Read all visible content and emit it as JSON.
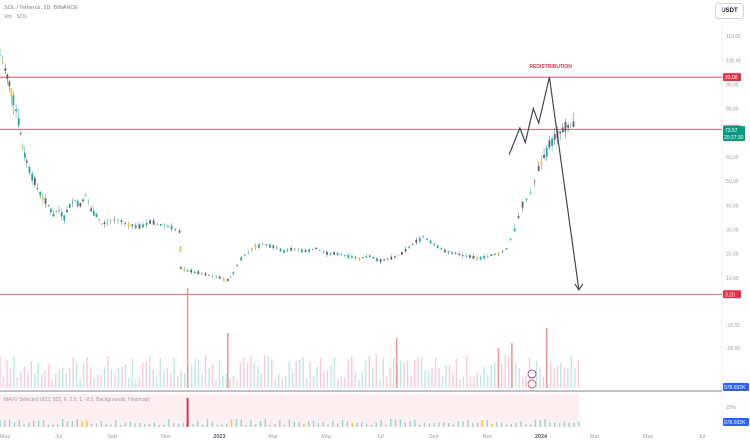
{
  "header": {
    "symbol_line": "SOL / Tetherus, 3D, BINANCE",
    "sub_line": "Vol · SOL",
    "currency": "USDT"
  },
  "chart_data": {
    "type": "candlestick",
    "price_axis": {
      "ticks": [
        110,
        100,
        90,
        80,
        70,
        60,
        50,
        40,
        30,
        20,
        10
      ],
      "tick_labels": [
        "110.00",
        "100.00",
        "90.00",
        "80.00",
        "70.00",
        "60.00",
        "50.00",
        "40.00",
        "30.00",
        "20.00",
        "10.00"
      ],
      "range": [
        0,
        120
      ]
    },
    "volume_axis": {
      "tick_labels": [
        "-10.00",
        "-20.00"
      ],
      "last_label": "978.692K"
    },
    "time_axis": {
      "labels": [
        "May",
        "Jul",
        "Sep",
        "Nov",
        "2023",
        "Mar",
        "May",
        "Jul",
        "Sep",
        "Nov",
        "2024",
        "Mar",
        "May",
        "Jul"
      ],
      "bold": [
        "2023",
        "2024"
      ]
    },
    "horizontal_levels": [
      {
        "value": 93.0,
        "label": "93.08",
        "color": "#e0334a"
      },
      {
        "value": 71.4,
        "label": "71.40",
        "color": "#e0334a"
      },
      {
        "value": 3.2,
        "label": "3.20",
        "color": "#e0334a"
      }
    ],
    "current_price": {
      "value": 73.57,
      "label": "73.57",
      "countdown": "20:27:30",
      "color": "#089981"
    },
    "annotation": {
      "text": "REDISTRIBUTION",
      "color": "#e0334a"
    },
    "projection": {
      "path_points": [
        {
          "month": 19.0,
          "price": 61
        },
        {
          "month": 19.4,
          "price": 72
        },
        {
          "month": 19.6,
          "price": 66
        },
        {
          "month": 19.9,
          "price": 80
        },
        {
          "month": 20.1,
          "price": 74
        },
        {
          "month": 20.5,
          "price": 93
        },
        {
          "month": 21.6,
          "price": 5
        }
      ],
      "color": "#434651"
    },
    "price_series": {
      "x_unit": "months since Apr 2022",
      "points": [
        [
          0,
          102
        ],
        [
          0.2,
          96
        ],
        [
          0.35,
          90
        ],
        [
          0.5,
          84
        ],
        [
          0.7,
          75
        ],
        [
          0.85,
          64
        ],
        [
          1.0,
          58
        ],
        [
          1.2,
          52
        ],
        [
          1.4,
          47
        ],
        [
          1.6,
          43
        ],
        [
          1.8,
          40
        ],
        [
          2.0,
          36
        ],
        [
          2.2,
          38
        ],
        [
          2.4,
          35
        ],
        [
          2.6,
          40
        ],
        [
          2.8,
          42
        ],
        [
          3.0,
          40
        ],
        [
          3.2,
          44
        ],
        [
          3.4,
          38
        ],
        [
          3.6,
          36
        ],
        [
          3.8,
          32
        ],
        [
          4.0,
          33
        ],
        [
          4.4,
          34
        ],
        [
          4.8,
          32
        ],
        [
          5.2,
          31
        ],
        [
          5.6,
          33
        ],
        [
          6.0,
          32
        ],
        [
          6.4,
          31
        ],
        [
          6.7,
          29
        ],
        [
          6.75,
          14
        ],
        [
          7.0,
          13
        ],
        [
          7.4,
          12
        ],
        [
          7.8,
          11
        ],
        [
          8.2,
          10
        ],
        [
          8.5,
          9
        ],
        [
          8.7,
          12
        ],
        [
          9.0,
          18
        ],
        [
          9.4,
          22
        ],
        [
          9.8,
          24
        ],
        [
          10.2,
          23
        ],
        [
          10.6,
          21
        ],
        [
          11.0,
          22
        ],
        [
          11.4,
          21
        ],
        [
          11.8,
          22
        ],
        [
          12.2,
          20
        ],
        [
          12.6,
          20
        ],
        [
          13.0,
          19
        ],
        [
          13.4,
          18
        ],
        [
          13.8,
          19
        ],
        [
          14.2,
          17
        ],
        [
          14.6,
          18
        ],
        [
          15.0,
          20
        ],
        [
          15.4,
          24
        ],
        [
          15.8,
          27
        ],
        [
          16.2,
          24
        ],
        [
          16.6,
          21
        ],
        [
          17.0,
          20
        ],
        [
          17.4,
          19
        ],
        [
          17.8,
          18
        ],
        [
          18.2,
          19
        ],
        [
          18.6,
          20
        ],
        [
          18.9,
          22
        ],
        [
          19.2,
          30
        ],
        [
          19.5,
          40
        ],
        [
          19.8,
          45
        ],
        [
          20.1,
          55
        ],
        [
          20.3,
          60
        ],
        [
          20.5,
          65
        ],
        [
          20.7,
          68
        ],
        [
          20.9,
          70
        ],
        [
          21.1,
          72
        ],
        [
          21.3,
          73
        ],
        [
          21.5,
          73.57
        ]
      ]
    },
    "volume_spikes": [
      {
        "month": 7.0,
        "value": 1.0
      },
      {
        "month": 8.5,
        "value": 0.55
      },
      {
        "month": 14.8,
        "value": 0.5
      },
      {
        "month": 18.6,
        "value": 0.4
      },
      {
        "month": 19.1,
        "value": 0.45
      },
      {
        "month": 20.4,
        "value": 0.6
      }
    ],
    "indicator": {
      "label": "MAVV Selected (822, 822, 6, 2.5, 1, -0.5, Backgrounds, Heatmap)",
      "right_labels": [
        "20%",
        "978.692K"
      ]
    }
  }
}
